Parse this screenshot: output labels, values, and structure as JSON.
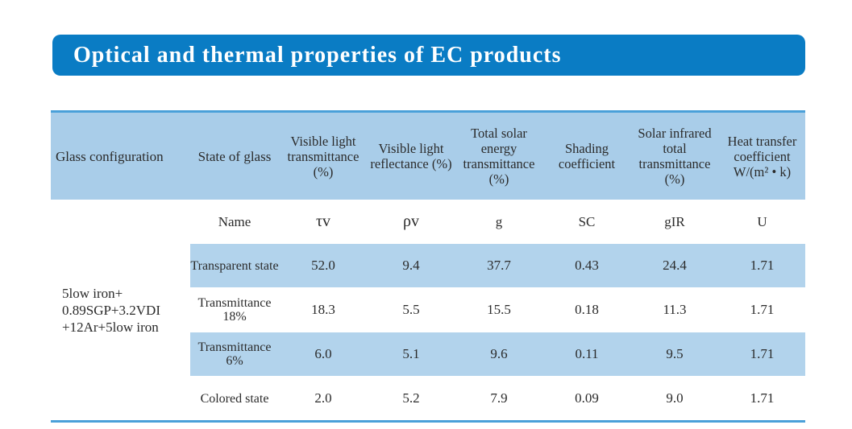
{
  "title": "Optical and thermal properties of EC products",
  "colors": {
    "banner": "#0a7cc4",
    "header_bg": "#a9cde9",
    "row_shade": "#b2d3ec",
    "rule": "#4aa0d9"
  },
  "headers": [
    "Glass configuration",
    "State of glass",
    "Visible light transmittance (%)",
    "Visible light reflectance (%)",
    "Total solar energy transmittance (%)",
    "Shading coefficient",
    "Solar infrared total transmittance (%)",
    "Heat transfer coefficient W/(m² • k)"
  ],
  "symbols": [
    "Name",
    "τv",
    "ρv",
    "g",
    "SC",
    "gIR",
    "U"
  ],
  "glass_config": "5low iron+ 0.89SGP+3.2VDI +12Ar+5low iron",
  "rows": [
    {
      "state": "Transparent state",
      "values": [
        "52.0",
        "9.4",
        "37.7",
        "0.43",
        "24.4",
        "1.71"
      ]
    },
    {
      "state": "Transmittance 18%",
      "values": [
        "18.3",
        "5.5",
        "15.5",
        "0.18",
        "11.3",
        "1.71"
      ]
    },
    {
      "state": "Transmittance 6%",
      "values": [
        "6.0",
        "5.1",
        "9.6",
        "0.11",
        "9.5",
        "1.71"
      ]
    },
    {
      "state": "Colored state",
      "values": [
        "2.0",
        "5.2",
        "7.9",
        "0.09",
        "9.0",
        "1.71"
      ]
    }
  ]
}
